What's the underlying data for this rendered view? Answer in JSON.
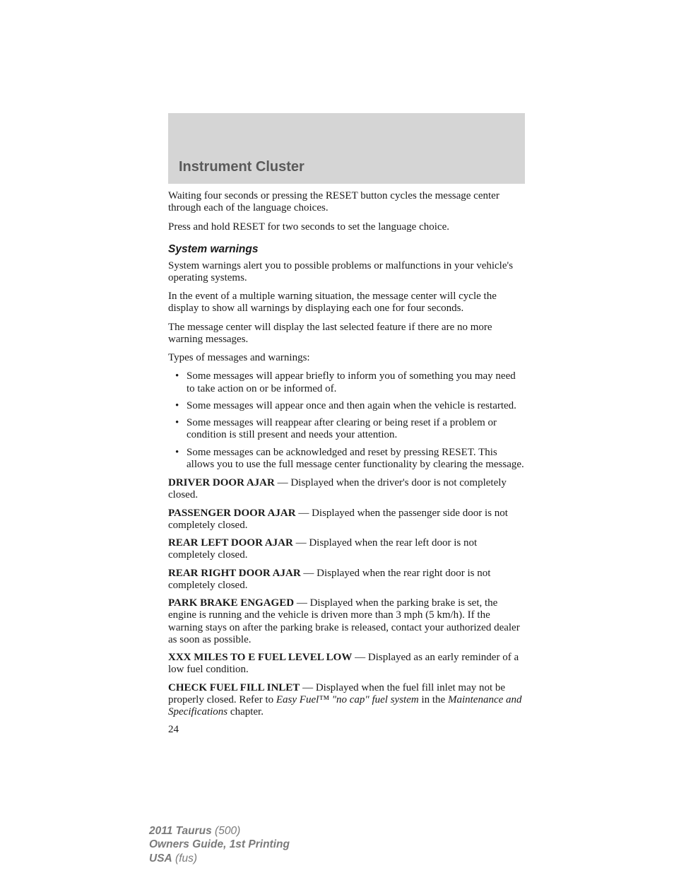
{
  "header": {
    "title": "Instrument Cluster"
  },
  "body": {
    "p1": "Waiting four seconds or pressing the RESET button cycles the message center through each of the language choices.",
    "p2": "Press and hold RESET for two seconds to set the language choice.",
    "subhead": "System warnings",
    "p3": "System warnings alert you to possible problems or malfunctions in your vehicle's operating systems.",
    "p4": "In the event of a multiple warning situation, the message center will cycle the display to show all warnings by displaying each one for four seconds.",
    "p5": "The message center will display the last selected feature if there are no more warning messages.",
    "p6": "Types of messages and warnings:",
    "bullets": [
      "Some messages will appear briefly to inform you of something you may need to take action on or be informed of.",
      "Some messages will appear once and then again when the vehicle is restarted.",
      "Some messages will reappear after clearing or being reset if a problem or condition is still present and needs your attention.",
      "Some messages can be acknowledged and reset by pressing RESET. This allows you to use the full message center functionality by clearing the message."
    ],
    "warnings": [
      {
        "label": "DRIVER DOOR AJAR",
        "text": " — Displayed when the driver's door is not completely closed."
      },
      {
        "label": "PASSENGER DOOR AJAR",
        "text": " — Displayed when the passenger side door is not completely closed."
      },
      {
        "label": "REAR LEFT DOOR AJAR",
        "text": " — Displayed when the rear left door is not completely closed."
      },
      {
        "label": "REAR RIGHT DOOR AJAR",
        "text": " — Displayed when the rear right door is not completely closed."
      },
      {
        "label": "PARK BRAKE ENGAGED",
        "text": " — Displayed when the parking brake is set, the engine is running and the vehicle is driven more than 3 mph (5 km/h). If the warning stays on after the parking brake is released, contact your authorized dealer as soon as possible."
      },
      {
        "label": "XXX MILES TO E FUEL LEVEL LOW",
        "text": " — Displayed as an early reminder of a low fuel condition."
      }
    ],
    "fuel_inlet": {
      "label": "CHECK FUEL FILL INLET",
      "pre": " — Displayed when the fuel fill inlet may not be properly closed. Refer to ",
      "em1": "Easy Fuel™ \"no cap\" fuel system",
      "mid": " in the ",
      "em2": "Maintenance and Specifications",
      "post": " chapter."
    },
    "page_number": "24"
  },
  "footer": {
    "l1a": "2011 Taurus",
    "l1b": " (500)",
    "l2": "Owners Guide, 1st Printing",
    "l3a": "USA",
    "l3b": " (fus)"
  }
}
